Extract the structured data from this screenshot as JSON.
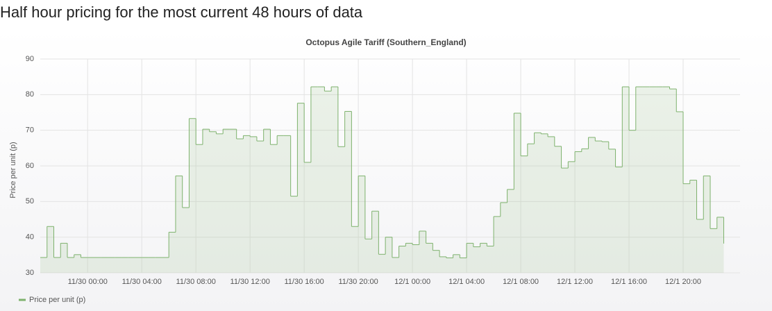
{
  "header": {
    "title": "Half hour pricing for the most current 48 hours of data"
  },
  "chart_data": {
    "type": "line",
    "step": true,
    "title": "Octopus Agile Tariff (Southern_England)",
    "y_label": "Price per unit (p)",
    "x": [
      "11/29 20:30",
      "11/29 21:00",
      "11/29 21:30",
      "11/29 22:00",
      "11/29 22:30",
      "11/29 23:00",
      "11/29 23:30",
      "11/30 00:00",
      "11/30 00:30",
      "11/30 01:00",
      "11/30 01:30",
      "11/30 02:00",
      "11/30 02:30",
      "11/30 03:00",
      "11/30 03:30",
      "11/30 04:00",
      "11/30 04:30",
      "11/30 05:00",
      "11/30 05:30",
      "11/30 06:00",
      "11/30 06:30",
      "11/30 07:00",
      "11/30 07:30",
      "11/30 08:00",
      "11/30 08:30",
      "11/30 09:00",
      "11/30 09:30",
      "11/30 10:00",
      "11/30 10:30",
      "11/30 11:00",
      "11/30 11:30",
      "11/30 12:00",
      "11/30 12:30",
      "11/30 13:00",
      "11/30 13:30",
      "11/30 14:00",
      "11/30 14:30",
      "11/30 15:00",
      "11/30 15:30",
      "11/30 16:00",
      "11/30 16:30",
      "11/30 17:00",
      "11/30 17:30",
      "11/30 18:00",
      "11/30 18:30",
      "11/30 19:00",
      "11/30 19:30",
      "11/30 20:00",
      "11/30 20:30",
      "11/30 21:00",
      "11/30 21:30",
      "11/30 22:00",
      "11/30 22:30",
      "11/30 23:00",
      "11/30 23:30",
      "12/1 00:00",
      "12/1 00:30",
      "12/1 01:00",
      "12/1 01:30",
      "12/1 02:00",
      "12/1 02:30",
      "12/1 03:00",
      "12/1 03:30",
      "12/1 04:00",
      "12/1 04:30",
      "12/1 05:00",
      "12/1 05:30",
      "12/1 06:00",
      "12/1 06:30",
      "12/1 07:00",
      "12/1 07:30",
      "12/1 08:00",
      "12/1 08:30",
      "12/1 09:00",
      "12/1 09:30",
      "12/1 10:00",
      "12/1 10:30",
      "12/1 11:00",
      "12/1 11:30",
      "12/1 12:00",
      "12/1 12:30",
      "12/1 13:00",
      "12/1 13:30",
      "12/1 14:00",
      "12/1 14:30",
      "12/1 15:00",
      "12/1 15:30",
      "12/1 16:00",
      "12/1 16:30",
      "12/1 17:00",
      "12/1 17:30",
      "12/1 18:00",
      "12/1 18:30",
      "12/1 19:00",
      "12/1 19:30",
      "12/1 20:00",
      "12/1 20:30",
      "12/1 21:00",
      "12/1 21:30",
      "12/1 22:00",
      "12/1 22:30",
      "12/1 23:00"
    ],
    "series": [
      {
        "name": "Price per unit (p)",
        "color": "#7eb26d",
        "values": [
          34.3,
          43,
          34.3,
          38.3,
          34.3,
          35.1,
          34.3,
          34.3,
          34.3,
          34.3,
          34.3,
          34.3,
          34.3,
          34.3,
          34.3,
          34.3,
          34.3,
          34.3,
          34.3,
          41.4,
          57.2,
          48.3,
          73.3,
          66,
          70.3,
          69.6,
          69,
          70.3,
          70.3,
          67.6,
          68.5,
          68.2,
          67,
          70.3,
          66,
          68.5,
          68.5,
          51.5,
          77.6,
          61,
          82.2,
          82.2,
          81,
          82.2,
          65.4,
          75.3,
          43,
          57.2,
          39.5,
          47.3,
          35.2,
          40,
          34.3,
          37.5,
          38.3,
          37.9,
          41.7,
          38.3,
          36.3,
          34.5,
          34.2,
          35.1,
          34.2,
          38.3,
          37.3,
          38.3,
          37.5,
          45.8,
          49.7,
          53.4,
          74.8,
          62.8,
          66.2,
          69.3,
          69,
          68.2,
          65.5,
          59.4,
          61.2,
          64,
          64.8,
          68,
          67,
          66.8,
          64.7,
          59.7,
          82.2,
          70,
          82.2,
          82.2,
          82.2,
          82.2,
          82.2,
          81.6,
          75.2,
          55,
          56,
          45,
          57.2,
          42.4,
          45.6,
          38.2
        ]
      }
    ],
    "xlim": [
      "11/29 20:30",
      "12/2 00:00"
    ],
    "xticks": [
      "11/30 00:00",
      "11/30 04:00",
      "11/30 08:00",
      "11/30 12:00",
      "11/30 16:00",
      "11/30 20:00",
      "12/1 00:00",
      "12/1 04:00",
      "12/1 08:00",
      "12/1 12:00",
      "12/1 16:00",
      "12/1 20:00"
    ],
    "ylim": [
      30,
      90
    ],
    "yticks": [
      30,
      40,
      50,
      60,
      70,
      80,
      90
    ],
    "grid": true,
    "legend": "bottom-left"
  }
}
